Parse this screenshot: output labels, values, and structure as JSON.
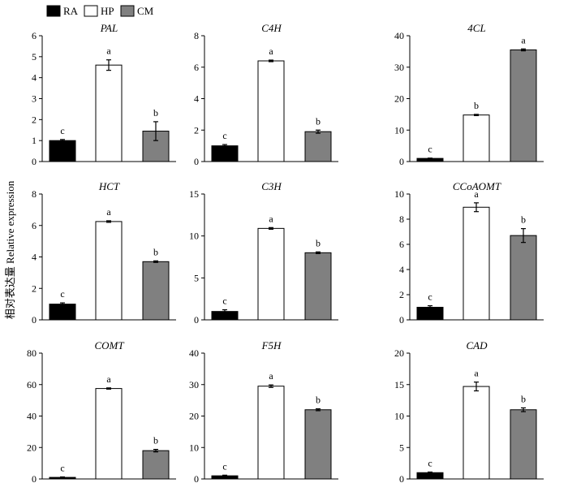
{
  "legend": {
    "items": [
      {
        "label": "RA",
        "color": "#000000"
      },
      {
        "label": "HP",
        "color": "#ffffff"
      },
      {
        "label": "CM",
        "color": "#808080"
      }
    ]
  },
  "y_axis_label": "相对表达量 Relative expression",
  "chart_data": [
    {
      "type": "bar",
      "title": "PAL",
      "categories": [
        "RA",
        "HP",
        "CM"
      ],
      "values": [
        1.0,
        4.6,
        1.45
      ],
      "errors": [
        0.05,
        0.25,
        0.45
      ],
      "letters": [
        "c",
        "a",
        "b"
      ],
      "ylim": [
        0,
        6
      ],
      "yticks": [
        0,
        1,
        2,
        3,
        4,
        5,
        6
      ],
      "grid": false
    },
    {
      "type": "bar",
      "title": "C4H",
      "categories": [
        "RA",
        "HP",
        "CM"
      ],
      "values": [
        1.0,
        6.4,
        1.9
      ],
      "errors": [
        0.08,
        0.05,
        0.1
      ],
      "letters": [
        "c",
        "a",
        "b"
      ],
      "ylim": [
        0,
        8
      ],
      "yticks": [
        0,
        2,
        4,
        6,
        8
      ],
      "grid": false
    },
    {
      "type": "bar",
      "title": "4CL",
      "categories": [
        "RA",
        "HP",
        "CM"
      ],
      "values": [
        1.0,
        14.8,
        35.5
      ],
      "errors": [
        0.1,
        0.2,
        0.3
      ],
      "letters": [
        "c",
        "b",
        "a"
      ],
      "ylim": [
        0,
        40
      ],
      "yticks": [
        0,
        10,
        20,
        30,
        40
      ],
      "grid": false
    },
    {
      "type": "bar",
      "title": "HCT",
      "categories": [
        "RA",
        "HP",
        "CM"
      ],
      "values": [
        1.0,
        6.25,
        3.7
      ],
      "errors": [
        0.08,
        0.05,
        0.05
      ],
      "letters": [
        "c",
        "a",
        "b"
      ],
      "ylim": [
        0,
        8
      ],
      "yticks": [
        0,
        2,
        4,
        6,
        8
      ],
      "grid": false
    },
    {
      "type": "bar",
      "title": "C3H",
      "categories": [
        "RA",
        "HP",
        "CM"
      ],
      "values": [
        1.0,
        10.9,
        8.0
      ],
      "errors": [
        0.2,
        0.1,
        0.1
      ],
      "letters": [
        "c",
        "a",
        "b"
      ],
      "ylim": [
        0,
        15
      ],
      "yticks": [
        0,
        5,
        10,
        15
      ],
      "grid": false
    },
    {
      "type": "bar",
      "title": "CCoAOMT",
      "categories": [
        "RA",
        "HP",
        "CM"
      ],
      "values": [
        1.0,
        8.95,
        6.7
      ],
      "errors": [
        0.12,
        0.35,
        0.55
      ],
      "letters": [
        "c",
        "a",
        "b"
      ],
      "ylim": [
        0,
        10
      ],
      "yticks": [
        0,
        2,
        4,
        6,
        8,
        10
      ],
      "grid": false
    },
    {
      "type": "bar",
      "title": "COMT",
      "categories": [
        "RA",
        "HP",
        "CM"
      ],
      "values": [
        1.0,
        57.5,
        18.0
      ],
      "errors": [
        0.3,
        0.4,
        0.8
      ],
      "letters": [
        "c",
        "a",
        "b"
      ],
      "ylim": [
        0,
        80
      ],
      "yticks": [
        0,
        20,
        40,
        60,
        80
      ],
      "grid": false
    },
    {
      "type": "bar",
      "title": "F5H",
      "categories": [
        "RA",
        "HP",
        "CM"
      ],
      "values": [
        1.0,
        29.5,
        22.0
      ],
      "errors": [
        0.2,
        0.4,
        0.3
      ],
      "letters": [
        "c",
        "a",
        "b"
      ],
      "ylim": [
        0,
        40
      ],
      "yticks": [
        0,
        10,
        20,
        30,
        40
      ],
      "grid": false
    },
    {
      "type": "bar",
      "title": "CAD",
      "categories": [
        "RA",
        "HP",
        "CM"
      ],
      "values": [
        1.0,
        14.7,
        11.0
      ],
      "errors": [
        0.1,
        0.7,
        0.3
      ],
      "letters": [
        "c",
        "a",
        "b"
      ],
      "ylim": [
        0,
        20
      ],
      "yticks": [
        0,
        5,
        10,
        15,
        20
      ],
      "grid": false
    }
  ]
}
